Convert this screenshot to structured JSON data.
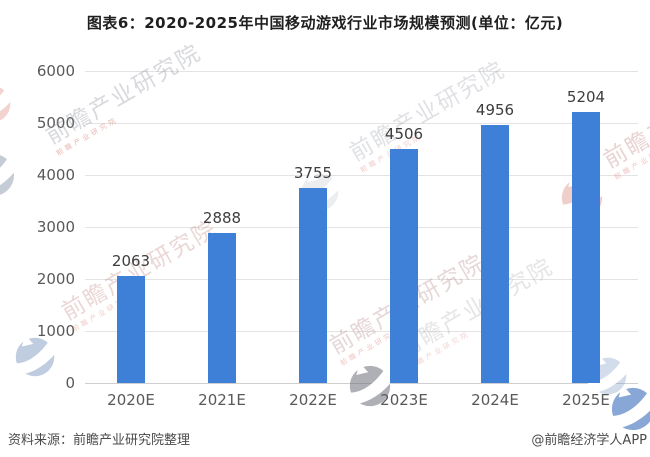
{
  "chart_data": {
    "type": "bar",
    "title": "图表6：2020-2025年中国移动游戏行业市场规模预测(单位：亿元)",
    "unit": "亿元",
    "categories": [
      "2020E",
      "2021E",
      "2022E",
      "2023E",
      "2024E",
      "2025E"
    ],
    "values": [
      2063,
      2888,
      3755,
      4506,
      4956,
      5204
    ],
    "xlabel": "",
    "ylabel": "",
    "ylim": [
      0,
      6000
    ],
    "yticks": [
      0,
      1000,
      2000,
      3000,
      4000,
      5000,
      6000
    ],
    "grid": true,
    "legend": "none",
    "data_labels": true,
    "bar_color": "#3e7fd8"
  },
  "footer": {
    "source": "资料来源：前瞻产业研究院整理",
    "credit": "@前瞻经济学人APP"
  },
  "watermark": {
    "text": "前瞻产业研究院",
    "subtext": "前瞻产业研究院"
  },
  "colors": {
    "bar": "#3e7fd8",
    "gridline": "#e3e3e3",
    "axis_line": "#cfcfcf",
    "tick_label": "#595959",
    "value_label": "#3d3d3d",
    "title": "#1f1f1f",
    "footer": "#4a4a4a"
  }
}
